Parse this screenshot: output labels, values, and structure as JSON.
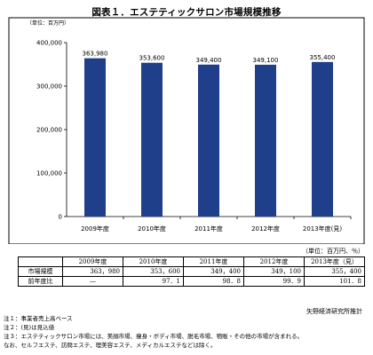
{
  "title": "図表１．エステティックサロン市場規模推移",
  "chart_data": {
    "type": "bar",
    "unit_label": "（単位：百万円）",
    "categories": [
      "2009年度",
      "2010年度",
      "2011年度",
      "2012年度",
      "2013年度(見)"
    ],
    "values": [
      363980,
      353600,
      349400,
      349100,
      355400
    ],
    "value_labels": [
      "363,980",
      "353,600",
      "349,400",
      "349,100",
      "355,400"
    ],
    "ylim": [
      0,
      400000
    ],
    "yticks": [
      0,
      100000,
      200000,
      300000,
      400000
    ],
    "ytick_labels": [
      "0",
      "100,000",
      "200,000",
      "300,000",
      "400,000"
    ],
    "grid": false,
    "bar_color": "#1f3f8a"
  },
  "table": {
    "unit": "（単位：百万円、％）",
    "columns": [
      "2009年度",
      "2010年度",
      "2011年度",
      "2012年度",
      "2013年度（見）"
    ],
    "rows": [
      {
        "label": "市場規模",
        "cells": [
          "363，980",
          "353，600",
          "349，400",
          "349，100",
          "355，400"
        ]
      },
      {
        "label": "前年度比",
        "cells": [
          "—",
          "97．1",
          "98．8",
          "99．9",
          "101．8"
        ]
      }
    ]
  },
  "source": "矢野経済研究所推計",
  "notes": [
    "注１：事業者売上高ベース",
    "注２：(見)は見込値",
    "注３：エステティックサロン市場には、美顔市場、痩身・ボディ市場、脱毛市場、物販・その他の市場が含まれる。",
    "なお、セルフエステ、訪問エステ、理美容エステ、メディカルエステなどは除く。"
  ]
}
